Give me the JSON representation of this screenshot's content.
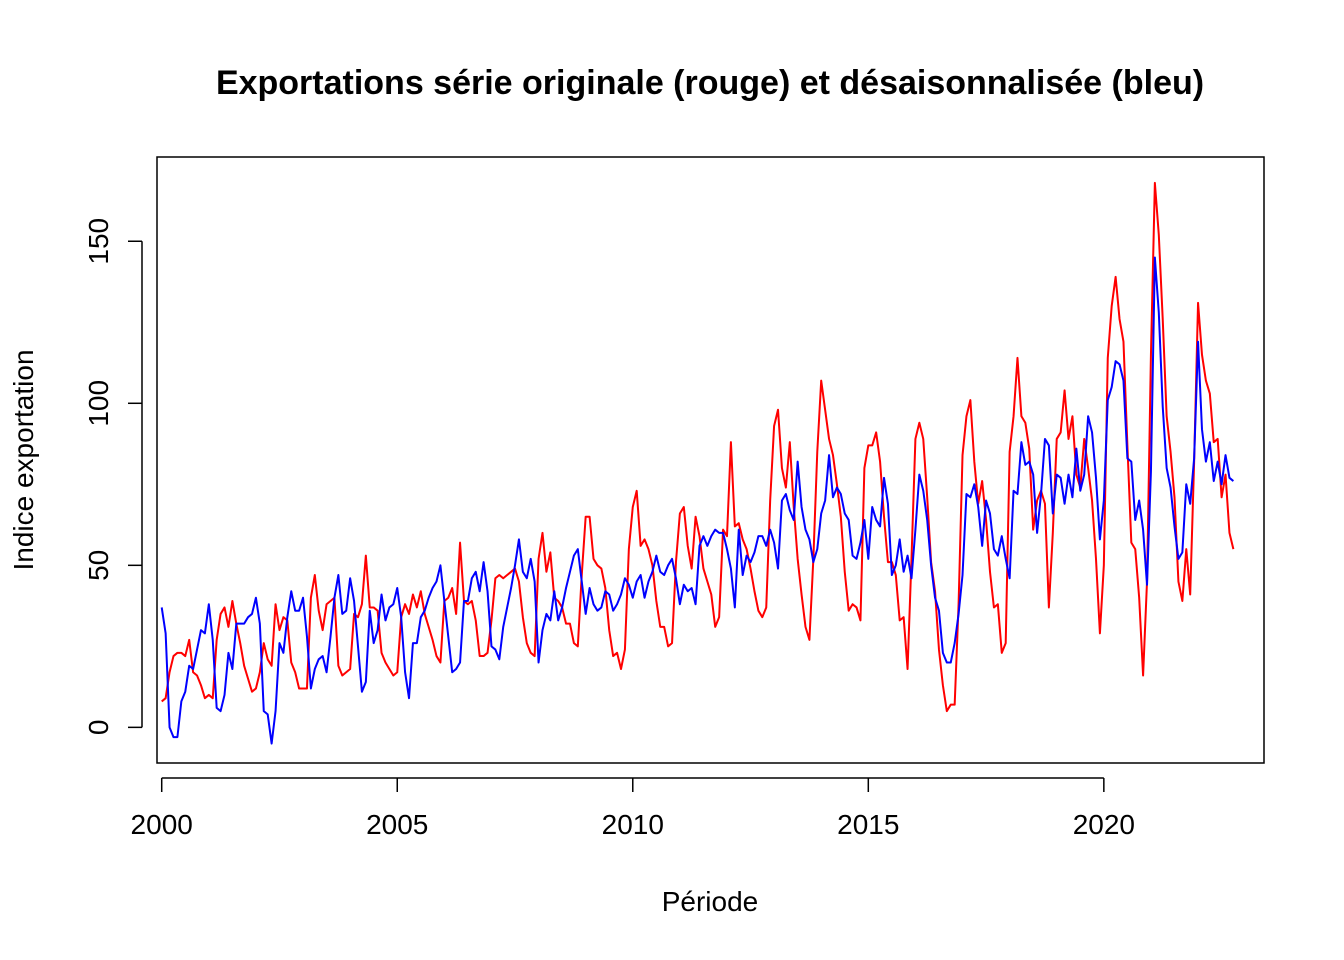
{
  "chart_data": {
    "type": "line",
    "title": "Exportations série originale (rouge) et désaisonnalisée (bleu)",
    "xlabel": "Période",
    "ylabel": "Indice exportation",
    "xlim": [
      1999.9,
      2023.4
    ],
    "ylim": [
      -11,
      176
    ],
    "x_ticks": [
      {
        "value": 2000,
        "label": "2000"
      },
      {
        "value": 2005,
        "label": "2005"
      },
      {
        "value": 2010,
        "label": "2010"
      },
      {
        "value": 2015,
        "label": "2015"
      },
      {
        "value": 2020,
        "label": "2020"
      }
    ],
    "y_ticks": [
      {
        "value": 0,
        "label": "0"
      },
      {
        "value": 50,
        "label": "50"
      },
      {
        "value": 100,
        "label": "100"
      },
      {
        "value": 150,
        "label": "150"
      }
    ],
    "grid": false,
    "x_start": 2000,
    "frequency": 12,
    "series": [
      {
        "color": "#ff0000",
        "values": [
          8,
          9,
          17,
          22,
          23,
          23,
          22,
          27,
          17,
          16,
          13,
          9,
          10,
          9,
          27,
          35,
          37,
          31,
          39,
          32,
          26,
          19,
          15,
          11,
          12,
          17,
          26,
          21,
          19,
          38,
          30,
          34,
          33,
          20,
          17,
          12,
          12,
          12,
          40,
          47,
          36,
          30,
          38,
          39,
          40,
          19,
          16,
          17,
          18,
          35,
          34,
          38,
          53,
          37,
          37,
          36,
          23,
          20,
          18,
          16,
          17,
          34,
          38,
          35,
          41,
          37,
          42,
          35,
          31,
          27,
          22,
          20,
          39,
          40,
          43,
          35,
          57,
          39,
          38,
          39,
          33,
          22,
          22,
          23,
          33,
          46,
          47,
          46,
          47,
          48,
          49,
          45,
          34,
          26,
          23,
          22,
          52,
          60,
          48,
          54,
          40,
          39,
          37,
          32,
          32,
          26,
          25,
          47,
          65,
          65,
          52,
          50,
          49,
          43,
          30,
          22,
          23,
          18,
          24,
          55,
          68,
          73,
          56,
          58,
          55,
          50,
          39,
          31,
          31,
          25,
          26,
          51,
          66,
          68,
          56,
          49,
          65,
          59,
          49,
          45,
          41,
          31,
          34,
          61,
          59,
          88,
          62,
          63,
          58,
          55,
          49,
          42,
          36,
          34,
          37,
          70,
          93,
          98,
          80,
          74,
          88,
          68,
          52,
          41,
          31,
          27,
          52,
          85,
          107,
          98,
          89,
          84,
          75,
          65,
          48,
          36,
          38,
          37,
          33,
          80,
          87,
          87,
          91,
          82,
          65,
          51,
          51,
          47,
          33,
          34,
          18,
          52,
          89,
          94,
          89,
          71,
          51,
          42,
          24,
          13,
          5,
          7,
          7,
          38,
          84,
          96,
          101,
          82,
          69,
          76,
          64,
          48,
          37,
          38,
          23,
          26,
          85,
          96,
          114,
          96,
          94,
          86,
          61,
          70,
          73,
          69,
          37,
          60,
          89,
          91,
          104,
          89,
          96,
          78,
          74,
          89,
          80,
          70,
          52,
          29,
          50,
          114,
          130,
          139,
          126,
          119,
          87,
          57,
          55,
          40,
          16,
          45,
          115,
          168,
          152,
          126,
          96,
          85,
          71,
          45,
          39,
          55,
          41,
          82,
          131,
          115,
          107,
          103,
          88,
          89,
          71,
          78,
          60,
          55
        ]
      },
      {
        "color": "#0000ff",
        "values": [
          37,
          29,
          0,
          -3,
          -3,
          8,
          11,
          19,
          18,
          24,
          30,
          29,
          38,
          27,
          6,
          5,
          10,
          23,
          18,
          32,
          32,
          32,
          34,
          35,
          40,
          32,
          5,
          4,
          -5,
          5,
          26,
          23,
          34,
          42,
          36,
          36,
          40,
          28,
          12,
          18,
          21,
          22,
          17,
          28,
          40,
          47,
          35,
          36,
          46,
          39,
          25,
          11,
          14,
          36,
          26,
          30,
          41,
          33,
          37,
          38,
          43,
          34,
          17,
          9,
          26,
          26,
          34,
          36,
          40,
          43,
          45,
          50,
          39,
          28,
          17,
          18,
          20,
          39,
          39,
          46,
          48,
          42,
          51,
          42,
          25,
          24,
          21,
          31,
          37,
          43,
          50,
          58,
          48,
          46,
          52,
          45,
          20,
          30,
          35,
          33,
          42,
          33,
          37,
          43,
          48,
          53,
          55,
          45,
          35,
          43,
          38,
          36,
          37,
          42,
          41,
          36,
          38,
          41,
          46,
          44,
          40,
          45,
          47,
          40,
          45,
          48,
          53,
          48,
          47,
          50,
          52,
          46,
          38,
          44,
          42,
          43,
          38,
          56,
          59,
          56,
          59,
          61,
          60,
          60,
          55,
          49,
          37,
          61,
          47,
          53,
          51,
          54,
          59,
          59,
          56,
          61,
          57,
          49,
          70,
          72,
          67,
          64,
          82,
          68,
          61,
          58,
          51,
          55,
          66,
          70,
          84,
          71,
          74,
          72,
          66,
          64,
          53,
          52,
          57,
          64,
          52,
          68,
          64,
          62,
          77,
          69,
          47,
          50,
          58,
          48,
          53,
          46,
          61,
          78,
          73,
          64,
          50,
          40,
          36,
          23,
          20,
          20,
          26,
          35,
          47,
          72,
          71,
          75,
          68,
          56,
          70,
          66,
          55,
          53,
          59,
          52,
          46,
          73,
          72,
          88,
          81,
          82,
          78,
          60,
          72,
          89,
          87,
          66,
          78,
          77,
          69,
          78,
          71,
          86,
          73,
          78,
          96,
          91,
          77,
          58,
          70,
          101,
          105,
          113,
          112,
          107,
          83,
          82,
          64,
          70,
          61,
          44,
          79,
          145,
          128,
          99,
          80,
          74,
          62,
          52,
          54,
          75,
          69,
          83,
          119,
          92,
          82,
          88,
          76,
          82,
          75,
          84,
          77,
          76
        ]
      }
    ]
  }
}
